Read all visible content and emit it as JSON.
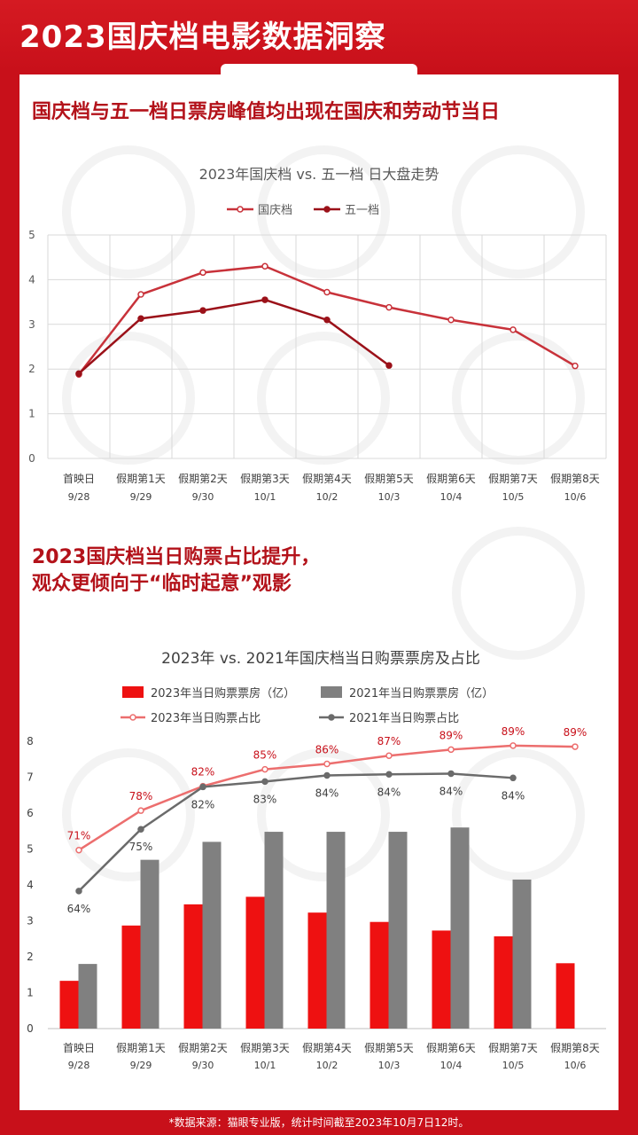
{
  "page_title": "2023国庆档电影数据洞察",
  "section1_heading": "国庆档与五一档日票房峰值均出现在国庆和劳动节当日",
  "section2_heading_line1": "2023国庆档当日购票占比提升，",
  "section2_heading_line2": "观众更倾向于“临时起意”观影",
  "footer_note": "*数据来源：猫眼专业版，统计时间截至2023年10月7日12时。",
  "colors": {
    "brand_red": "#c8101a",
    "national_day": "#c8323a",
    "may_day": "#9b1119",
    "bar_2023": "#ee1111",
    "bar_2021": "#808080",
    "line_2023": "#ec6e6e",
    "line_2021": "#6b6b6b"
  },
  "chart_data": [
    {
      "type": "line",
      "title": "2023年国庆档 vs. 五一档 日大盘走势",
      "categories": [
        "首映日",
        "假期第1天",
        "假期第2天",
        "假期第3天",
        "假期第4天",
        "假期第5天",
        "假期第6天",
        "假期第7天",
        "假期第8天"
      ],
      "dates": [
        "9/28",
        "9/29",
        "9/30",
        "10/1",
        "10/2",
        "10/3",
        "10/4",
        "10/5",
        "10/6"
      ],
      "ylim": [
        0,
        5
      ],
      "yticks": [
        0,
        1,
        2,
        3,
        4,
        5
      ],
      "grid": true,
      "legend_position": "top",
      "series": [
        {
          "name": "国庆档",
          "values": [
            1.88,
            3.67,
            4.16,
            4.3,
            3.72,
            3.38,
            3.1,
            2.88,
            2.07
          ]
        },
        {
          "name": "五一档",
          "values": [
            1.9,
            3.13,
            3.31,
            3.55,
            3.1,
            2.08,
            null,
            null,
            null
          ]
        }
      ]
    },
    {
      "type": "bar",
      "title": "2023年 vs. 2021年国庆档当日购票票房及占比",
      "categories": [
        "首映日",
        "假期第1天",
        "假期第2天",
        "假期第3天",
        "假期第4天",
        "假期第5天",
        "假期第6天",
        "假期第7天",
        "假期第8天"
      ],
      "dates": [
        "9/28",
        "9/29",
        "9/30",
        "10/1",
        "10/2",
        "10/3",
        "10/4",
        "10/5",
        "10/6"
      ],
      "ylim": [
        0,
        8
      ],
      "yticks": [
        0,
        1,
        2,
        3,
        4,
        5,
        6,
        7,
        8
      ],
      "legend_position": "top",
      "series": [
        {
          "name": "2023年当日购票票房（亿）",
          "kind": "bar",
          "values": [
            1.33,
            2.87,
            3.46,
            3.67,
            3.23,
            2.97,
            2.73,
            2.57,
            1.82
          ]
        },
        {
          "name": "2021年当日购票票房（亿）",
          "kind": "bar",
          "values": [
            1.8,
            4.7,
            5.2,
            5.48,
            5.48,
            5.48,
            5.6,
            4.15,
            null
          ]
        },
        {
          "name": "2023年当日购票占比",
          "kind": "line",
          "values": [
            4.97,
            6.07,
            6.75,
            7.22,
            7.37,
            7.6,
            7.77,
            7.88,
            7.85
          ],
          "labels": [
            "71%",
            "78%",
            "82%",
            "85%",
            "86%",
            "87%",
            "89%",
            "89%",
            "89%"
          ]
        },
        {
          "name": "2021年当日购票占比",
          "kind": "line",
          "values": [
            3.83,
            5.55,
            6.73,
            6.88,
            7.05,
            7.08,
            7.1,
            6.98,
            null
          ],
          "labels": [
            "64%",
            "75%",
            "82%",
            "83%",
            "84%",
            "84%",
            "84%",
            "84%",
            ""
          ]
        }
      ]
    }
  ]
}
